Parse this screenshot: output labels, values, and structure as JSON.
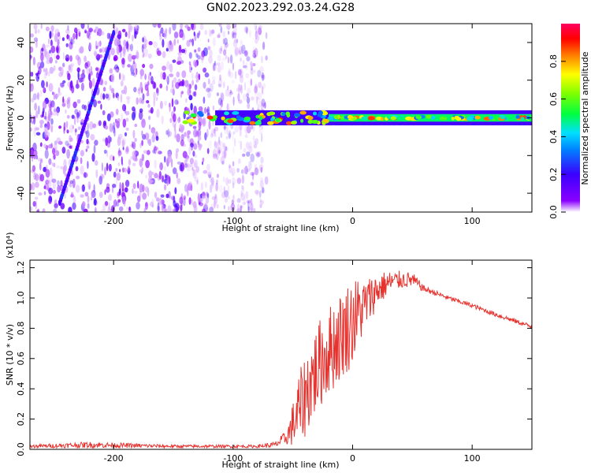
{
  "figure": {
    "title": "GN02.2023.292.03.24.G28"
  },
  "chart_data": [
    {
      "type": "heatmap",
      "xlabel": "Height of straight line (km)",
      "ylabel": "Frequency (Hz)",
      "xlim": [
        -270,
        150
      ],
      "ylim": [
        -50,
        50
      ],
      "x_ticks": [
        -200,
        -100,
        0,
        100
      ],
      "y_ticks": [
        -40,
        -20,
        0,
        20,
        40
      ],
      "colorbar": {
        "label": "Normalized spectral amplitude",
        "range": [
          0,
          1
        ],
        "ticks": [
          0.0,
          0.2,
          0.4,
          0.6,
          0.8
        ],
        "colormap": "rainbow (purple-blue-cyan-green-yellow-red-magenta)"
      },
      "features": [
        {
          "name": "dominant tone",
          "x_range": [
            -140,
            150
          ],
          "frequency": 0,
          "amplitude_range": [
            0.3,
            0.9
          ]
        },
        {
          "name": "diagonal streak",
          "x_range": [
            -245,
            -200
          ],
          "frequency_range": [
            -45,
            45
          ]
        },
        {
          "name": "noise region",
          "x_range": [
            -270,
            -80
          ],
          "frequency_range": [
            -50,
            50
          ]
        }
      ]
    },
    {
      "type": "line",
      "xlabel": "Height of straight line (km)",
      "ylabel": "SNR (10 * v/v)",
      "scale_label": "(x10⁴)",
      "xlim": [
        -270,
        150
      ],
      "ylim": [
        0,
        1.25
      ],
      "x_ticks": [
        -200,
        -100,
        0,
        100
      ],
      "y_ticks": [
        0.0,
        0.2,
        0.4,
        0.6,
        0.8,
        1.0,
        1.2
      ],
      "series": [
        {
          "color": "#e8322e",
          "x": [
            -270,
            -220,
            -150,
            -80,
            -65,
            -55,
            -45,
            -35,
            -25,
            -15,
            -5,
            0,
            10,
            20,
            30,
            40,
            50,
            60,
            80,
            100,
            120,
            150
          ],
          "values": [
            0.02,
            0.03,
            0.02,
            0.02,
            0.03,
            0.08,
            0.25,
            0.45,
            0.6,
            0.7,
            0.8,
            0.85,
            0.95,
            1.05,
            1.1,
            1.12,
            1.12,
            1.06,
            1.0,
            0.95,
            0.89,
            0.81
          ],
          "noise": [
            0.01,
            0.02,
            0.01,
            0.01,
            0.02,
            0.05,
            0.25,
            0.3,
            0.3,
            0.3,
            0.3,
            0.3,
            0.18,
            0.12,
            0.08,
            0.06,
            0.05,
            0.02,
            0.015,
            0.015,
            0.015,
            0.015
          ]
        }
      ]
    }
  ]
}
